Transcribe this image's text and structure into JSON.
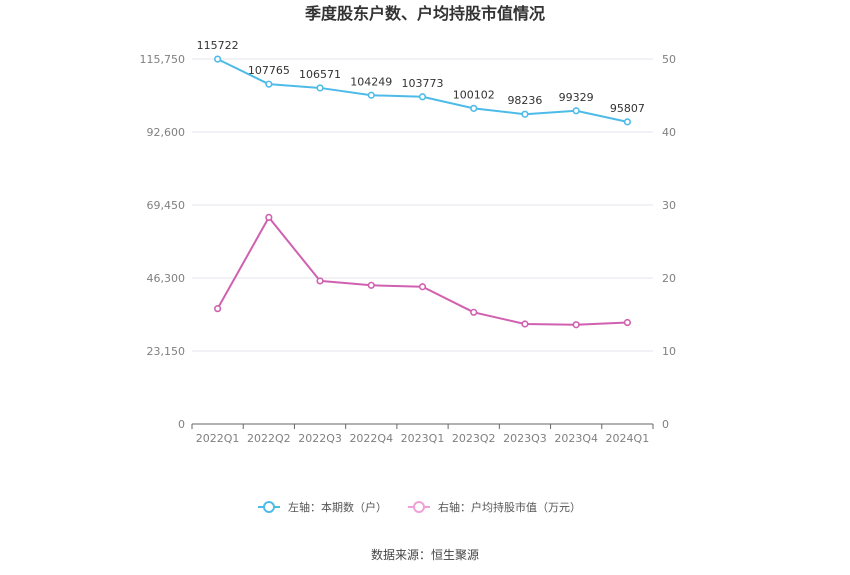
{
  "chart_data": {
    "type": "line",
    "title": "季度股东户数、户均持股市值情况",
    "categories": [
      "2022Q1",
      "2022Q2",
      "2022Q3",
      "2022Q4",
      "2023Q1",
      "2023Q2",
      "2023Q3",
      "2023Q4",
      "2024Q1"
    ],
    "y_left": {
      "ticks": [
        "0",
        "23,150",
        "46,300",
        "69,450",
        "92,600",
        "115,750"
      ],
      "ylim": [
        0,
        115750
      ]
    },
    "y_right": {
      "ticks": [
        "0",
        "10",
        "20",
        "30",
        "40",
        "50"
      ],
      "ylim": [
        0,
        50
      ]
    },
    "series": [
      {
        "name": "左轴：本期数（户）",
        "axis": "left",
        "color": "#4dbbe8",
        "values": [
          115722,
          107765,
          106571,
          104249,
          103773,
          100102,
          98236,
          99329,
          95807
        ],
        "labels": [
          "115722",
          "107765",
          "106571",
          "104249",
          "103773",
          "100102",
          "98236",
          "99329",
          "95807"
        ]
      },
      {
        "name": "右轴：户均持股市值（万元）",
        "axis": "right",
        "color": "#d060b0",
        "values": [
          15.8,
          28.3,
          19.6,
          19.0,
          18.8,
          15.3,
          13.7,
          13.6,
          13.9
        ]
      }
    ],
    "grid": true,
    "legend": "bottom-center",
    "legend_colors": [
      "#4dbbe8",
      "#f0a0d8"
    ],
    "source": "数据来源：恒生聚源"
  }
}
